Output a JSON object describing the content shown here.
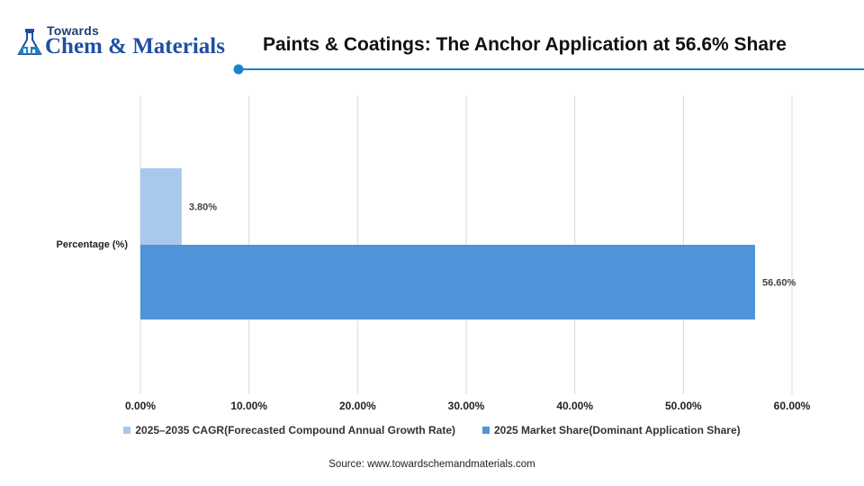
{
  "logo": {
    "top_text": "Towards",
    "main_text": "Chem & Materials",
    "icon": "flask-icon"
  },
  "title": "Paints & Coatings: The Anchor Application at 56.6% Share",
  "source": "Source: www.towardschemandmaterials.com",
  "colors": {
    "cagr_bar": "#a8c8ec",
    "share_bar": "#4f94d9",
    "accent": "#1a84c9",
    "grid": "#d9d9d9"
  },
  "chart_data": {
    "type": "bar",
    "orientation": "horizontal",
    "title": "Paints & Coatings: The Anchor Application at 56.6% Share",
    "categories": [
      "Percentage (%)"
    ],
    "series": [
      {
        "name": "2025–2035 CAGR(Forecasted Compound Annual Growth Rate)",
        "values": [
          3.8
        ],
        "label": "3.80%"
      },
      {
        "name": "2025 Market Share(Dominant Application Share)",
        "values": [
          56.6
        ],
        "label": "56.60%"
      }
    ],
    "xlim": [
      0,
      60
    ],
    "ticks": [
      "0.00%",
      "10.00%",
      "20.00%",
      "30.00%",
      "40.00%",
      "50.00%",
      "60.00%"
    ],
    "grid": true,
    "legend_position": "bottom"
  }
}
